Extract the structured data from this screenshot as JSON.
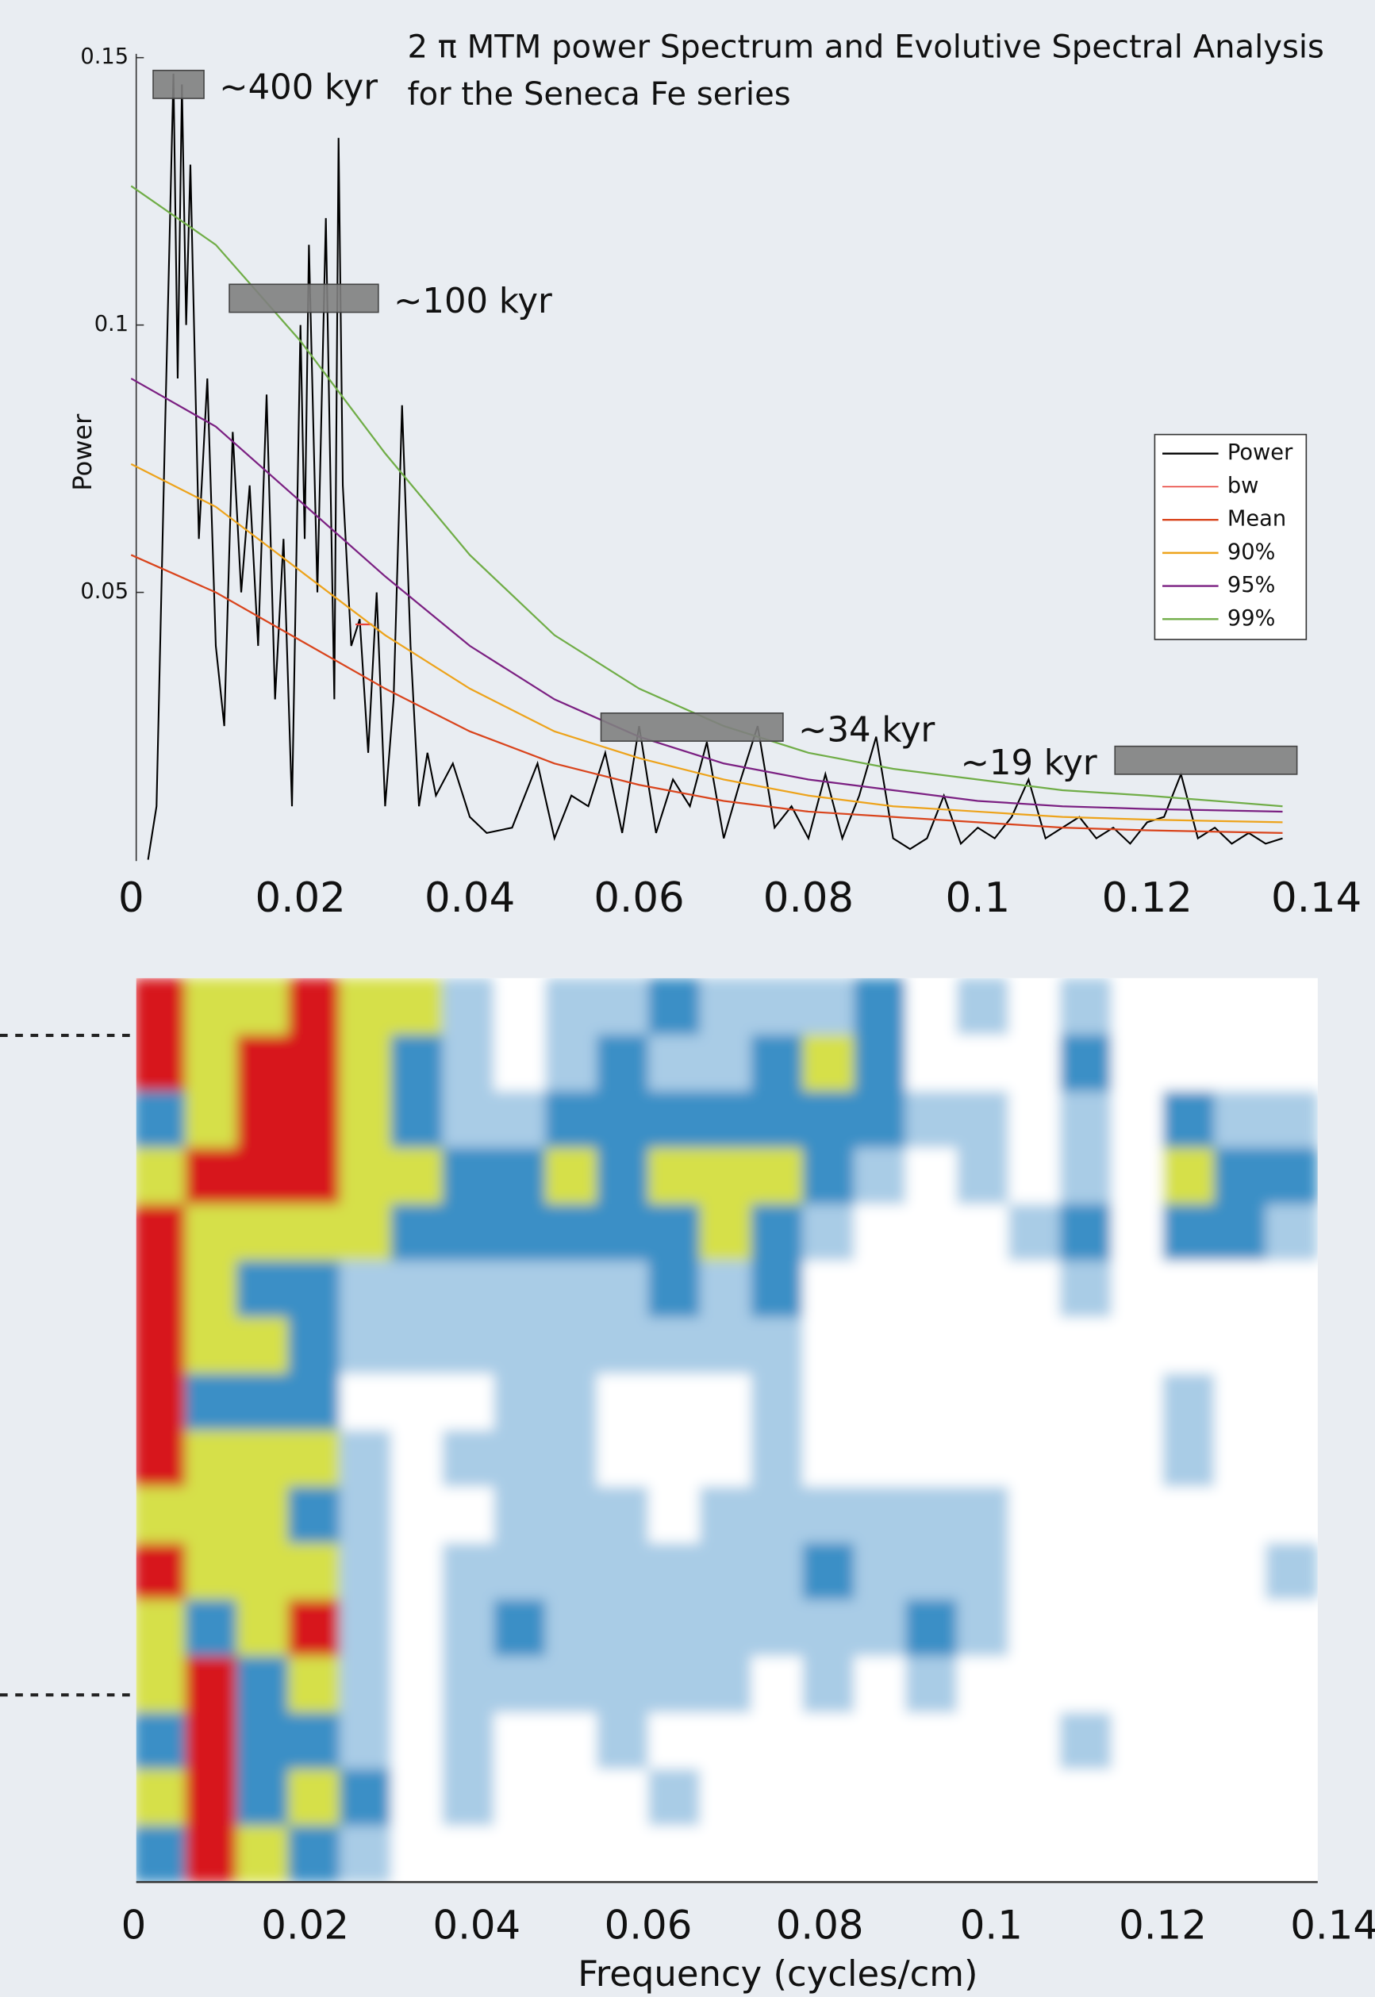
{
  "chart_data": [
    {
      "type": "line",
      "title": [
        "2 π MTM power Spectrum and Evolutive Spectral Analysis",
        "for the Seneca Fe series"
      ],
      "ylabel": "Power",
      "xlim": [
        0,
        0.14
      ],
      "xticks": [
        0,
        0.02,
        0.04,
        0.06,
        0.08,
        0.1,
        0.12,
        0.14
      ],
      "ylim": [
        0,
        0.15
      ],
      "yticks": [
        0.05,
        0.1,
        0.15
      ],
      "legend": "right",
      "series": [
        {
          "name": "Power",
          "color": "#000000",
          "x": [
            0.002,
            0.003,
            0.004,
            0.005,
            0.0055,
            0.006,
            0.0065,
            0.007,
            0.008,
            0.009,
            0.01,
            0.011,
            0.012,
            0.013,
            0.014,
            0.015,
            0.016,
            0.017,
            0.018,
            0.019,
            0.02,
            0.0205,
            0.021,
            0.022,
            0.023,
            0.024,
            0.0245,
            0.025,
            0.026,
            0.027,
            0.028,
            0.029,
            0.03,
            0.031,
            0.032,
            0.033,
            0.034,
            0.035,
            0.036,
            0.038,
            0.04,
            0.042,
            0.045,
            0.048,
            0.05,
            0.052,
            0.054,
            0.056,
            0.058,
            0.06,
            0.062,
            0.064,
            0.066,
            0.068,
            0.07,
            0.072,
            0.074,
            0.076,
            0.078,
            0.08,
            0.082,
            0.084,
            0.086,
            0.088,
            0.09,
            0.092,
            0.094,
            0.096,
            0.098,
            0.1,
            0.102,
            0.104,
            0.106,
            0.108,
            0.11,
            0.112,
            0.114,
            0.116,
            0.118,
            0.12,
            0.122,
            0.124,
            0.126,
            0.128,
            0.13,
            0.132,
            0.134,
            0.136
          ],
          "values": [
            0,
            0.01,
            0.08,
            0.147,
            0.09,
            0.145,
            0.1,
            0.13,
            0.06,
            0.09,
            0.04,
            0.025,
            0.08,
            0.05,
            0.07,
            0.04,
            0.087,
            0.03,
            0.06,
            0.01,
            0.1,
            0.06,
            0.115,
            0.05,
            0.12,
            0.03,
            0.135,
            0.07,
            0.04,
            0.045,
            0.02,
            0.05,
            0.01,
            0.03,
            0.085,
            0.04,
            0.01,
            0.02,
            0.012,
            0.018,
            0.008,
            0.005,
            0.006,
            0.018,
            0.004,
            0.012,
            0.01,
            0.02,
            0.005,
            0.025,
            0.005,
            0.015,
            0.01,
            0.022,
            0.004,
            0.015,
            0.025,
            0.006,
            0.01,
            0.004,
            0.016,
            0.004,
            0.012,
            0.023,
            0.004,
            0.002,
            0.004,
            0.012,
            0.003,
            0.006,
            0.004,
            0.008,
            0.015,
            0.004,
            0.006,
            0.008,
            0.004,
            0.006,
            0.003,
            0.007,
            0.008,
            0.016,
            0.004,
            0.006,
            0.003,
            0.005,
            0.003,
            0.004
          ]
        },
        {
          "name": "bw",
          "color": "#e8423a",
          "x": [
            0.0265,
            0.0285
          ],
          "values": [
            0.044,
            0.044
          ]
        },
        {
          "name": "Mean",
          "color": "#d9441c",
          "x": [
            0,
            0.01,
            0.02,
            0.03,
            0.04,
            0.05,
            0.06,
            0.07,
            0.08,
            0.09,
            0.1,
            0.11,
            0.12,
            0.136
          ],
          "values": [
            0.057,
            0.05,
            0.041,
            0.032,
            0.024,
            0.018,
            0.014,
            0.011,
            0.009,
            0.008,
            0.007,
            0.006,
            0.0055,
            0.005
          ]
        },
        {
          "name": "90%",
          "color": "#eda31b",
          "x": [
            0,
            0.01,
            0.02,
            0.03,
            0.04,
            0.05,
            0.06,
            0.07,
            0.08,
            0.09,
            0.1,
            0.11,
            0.12,
            0.136
          ],
          "values": [
            0.074,
            0.066,
            0.054,
            0.042,
            0.032,
            0.024,
            0.019,
            0.015,
            0.012,
            0.01,
            0.009,
            0.008,
            0.0075,
            0.007
          ]
        },
        {
          "name": "95%",
          "color": "#7b2082",
          "x": [
            0,
            0.01,
            0.02,
            0.03,
            0.04,
            0.05,
            0.06,
            0.07,
            0.08,
            0.09,
            0.1,
            0.11,
            0.12,
            0.136
          ],
          "values": [
            0.09,
            0.081,
            0.067,
            0.053,
            0.04,
            0.03,
            0.023,
            0.018,
            0.015,
            0.013,
            0.011,
            0.01,
            0.0095,
            0.009
          ]
        },
        {
          "name": "99%",
          "color": "#70ad47",
          "x": [
            0,
            0.01,
            0.02,
            0.03,
            0.04,
            0.05,
            0.06,
            0.07,
            0.08,
            0.09,
            0.1,
            0.11,
            0.12,
            0.136
          ],
          "values": [
            0.126,
            0.115,
            0.097,
            0.076,
            0.057,
            0.042,
            0.032,
            0.025,
            0.02,
            0.017,
            0.015,
            0.013,
            0.012,
            0.01
          ]
        }
      ],
      "bands": [
        {
          "label": "~400 kyr",
          "range": [
            0.0026,
            0.0086
          ],
          "level": 0.145
        },
        {
          "label": "~100 kyr",
          "range": [
            0.0116,
            0.0292
          ],
          "level": 0.105
        },
        {
          "label": "~34 kyr",
          "range": [
            0.0555,
            0.077
          ],
          "level": 0.0248
        },
        {
          "label": "~19 kyr",
          "range": [
            0.1162,
            0.1377
          ],
          "level": 0.0186
        }
      ]
    },
    {
      "type": "heatmap",
      "xlabel": "Frequency (cycles/cm)",
      "xlim": [
        0,
        0.14
      ],
      "xticks": [
        0,
        0.02,
        0.04,
        0.06,
        0.08,
        0.1,
        0.12,
        0.14
      ],
      "xbins": [
        0,
        0.006,
        0.012,
        0.018,
        0.024,
        0.03,
        0.036,
        0.042,
        0.048,
        0.054,
        0.06,
        0.066,
        0.072,
        0.078,
        0.084,
        0.09,
        0.096,
        0.102,
        0.108,
        0.114,
        0.12,
        0.126,
        0.132,
        0.138
      ],
      "colors": [
        "#ffffff",
        "#a9cce6",
        "#3b8fc6",
        "#d6e04a",
        "#d7191c"
      ],
      "z": [
        [
          4,
          3,
          3,
          4,
          3,
          3,
          1,
          0,
          1,
          1,
          2,
          1,
          1,
          1,
          2,
          0,
          1,
          0,
          1,
          0,
          0,
          0,
          0
        ],
        [
          4,
          3,
          4,
          4,
          3,
          2,
          1,
          0,
          1,
          2,
          1,
          1,
          2,
          3,
          2,
          0,
          0,
          0,
          2,
          0,
          0,
          0,
          0
        ],
        [
          2,
          3,
          4,
          4,
          3,
          2,
          1,
          1,
          2,
          2,
          2,
          2,
          2,
          2,
          2,
          1,
          1,
          0,
          1,
          0,
          2,
          1,
          1
        ],
        [
          3,
          4,
          4,
          4,
          3,
          3,
          2,
          2,
          3,
          2,
          3,
          3,
          3,
          2,
          1,
          0,
          1,
          0,
          1,
          0,
          3,
          2,
          2
        ],
        [
          4,
          3,
          3,
          3,
          3,
          2,
          2,
          2,
          2,
          2,
          2,
          3,
          2,
          1,
          0,
          0,
          0,
          1,
          2,
          0,
          2,
          2,
          1
        ],
        [
          4,
          3,
          2,
          2,
          1,
          1,
          1,
          1,
          1,
          1,
          2,
          1,
          2,
          0,
          0,
          0,
          0,
          0,
          1,
          0,
          0,
          0,
          0
        ],
        [
          4,
          3,
          3,
          2,
          1,
          1,
          1,
          1,
          1,
          1,
          1,
          1,
          1,
          0,
          0,
          0,
          0,
          0,
          0,
          0,
          0,
          0,
          0
        ],
        [
          4,
          2,
          2,
          2,
          0,
          0,
          0,
          1,
          1,
          0,
          0,
          0,
          1,
          0,
          0,
          0,
          0,
          0,
          0,
          0,
          1,
          0,
          0
        ],
        [
          4,
          3,
          3,
          3,
          1,
          0,
          1,
          1,
          1,
          0,
          0,
          0,
          1,
          0,
          0,
          0,
          0,
          0,
          0,
          0,
          1,
          0,
          0
        ],
        [
          3,
          3,
          3,
          2,
          1,
          0,
          0,
          1,
          1,
          1,
          0,
          1,
          1,
          1,
          1,
          1,
          1,
          0,
          0,
          0,
          0,
          0,
          0
        ],
        [
          4,
          3,
          3,
          3,
          1,
          0,
          1,
          1,
          1,
          1,
          1,
          1,
          1,
          2,
          1,
          1,
          1,
          0,
          0,
          0,
          0,
          0,
          1
        ],
        [
          3,
          2,
          3,
          4,
          1,
          0,
          1,
          2,
          1,
          1,
          1,
          1,
          1,
          1,
          1,
          2,
          1,
          0,
          0,
          0,
          0,
          0,
          0
        ],
        [
          3,
          4,
          2,
          3,
          1,
          0,
          1,
          1,
          1,
          1,
          1,
          1,
          0,
          1,
          0,
          1,
          0,
          0,
          0,
          0,
          0,
          0,
          0
        ],
        [
          2,
          4,
          2,
          2,
          1,
          0,
          1,
          0,
          0,
          1,
          0,
          0,
          0,
          0,
          0,
          0,
          0,
          0,
          1,
          0,
          0,
          0,
          0
        ],
        [
          3,
          4,
          2,
          3,
          2,
          0,
          1,
          0,
          0,
          0,
          1,
          0,
          0,
          0,
          0,
          0,
          0,
          0,
          0,
          0,
          0,
          0,
          0
        ],
        [
          2,
          4,
          3,
          2,
          1,
          0,
          0,
          0,
          0,
          0,
          0,
          0,
          0,
          0,
          0,
          0,
          0,
          0,
          0,
          0,
          0,
          0,
          0
        ]
      ]
    }
  ]
}
